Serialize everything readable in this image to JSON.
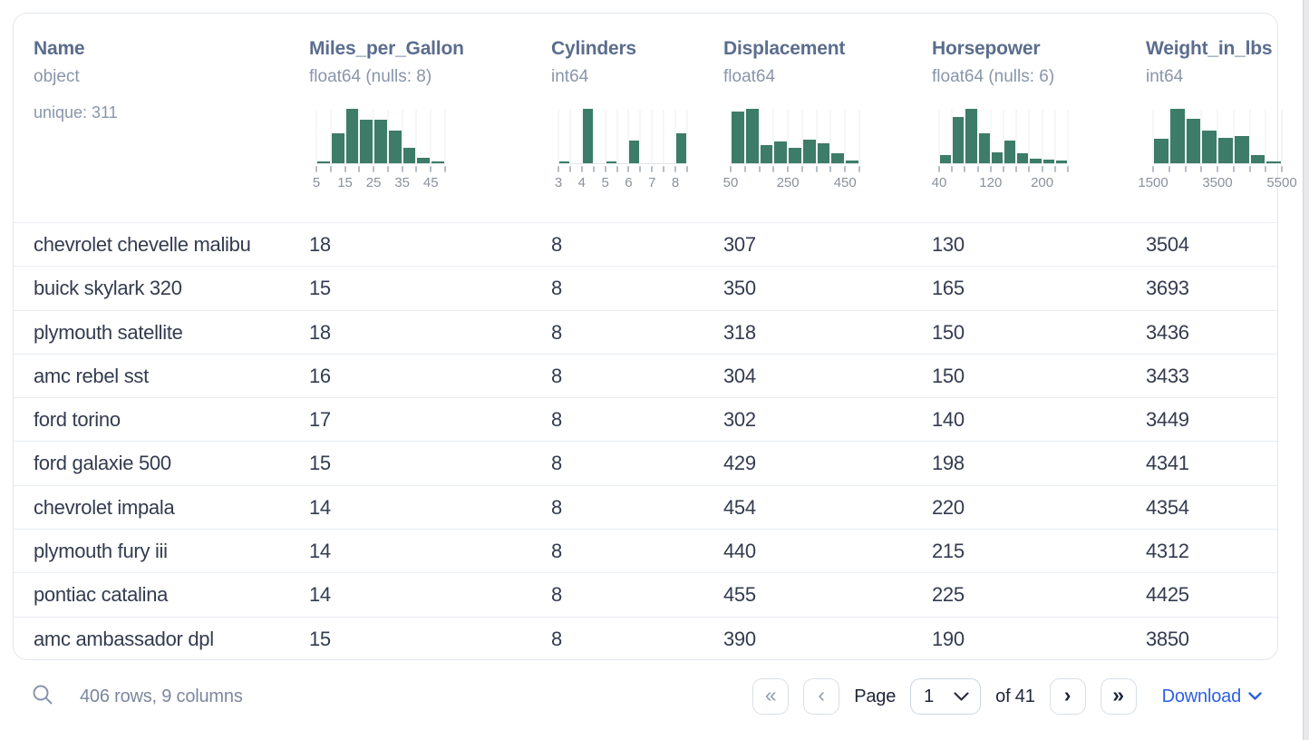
{
  "table": {
    "columns": [
      {
        "name": "Name",
        "type": "object",
        "extra": "unique: 311",
        "histogram": null
      },
      {
        "name": "Miles_per_Gallon",
        "type": "float64 (nulls: 8)",
        "extra": "",
        "histogram": {
          "bars": [
            3,
            55,
            100,
            80,
            80,
            60,
            28,
            10,
            3
          ],
          "tick_count": 10,
          "tick_labels": [
            {
              "i": 0,
              "t": "5"
            },
            {
              "i": 2,
              "t": "15"
            },
            {
              "i": 4,
              "t": "25"
            },
            {
              "i": 6,
              "t": "35"
            },
            {
              "i": 8,
              "t": "45"
            }
          ],
          "x_min": 5,
          "x_max": 50
        }
      },
      {
        "name": "Cylinders",
        "type": "int64",
        "extra": "",
        "histogram": {
          "bars": [
            4,
            0,
            100,
            0,
            3,
            0,
            42,
            0,
            0,
            0,
            55
          ],
          "tick_count": 12,
          "tick_labels": [
            {
              "i": 0,
              "t": "3"
            },
            {
              "i": 2,
              "t": "4"
            },
            {
              "i": 4,
              "t": "5"
            },
            {
              "i": 6,
              "t": "6"
            },
            {
              "i": 8,
              "t": "7"
            },
            {
              "i": 10,
              "t": "8"
            }
          ],
          "x_min": 3,
          "x_max": 8.5
        }
      },
      {
        "name": "Displacement",
        "type": "float64",
        "extra": "",
        "histogram": {
          "bars": [
            95,
            100,
            33,
            40,
            29,
            43,
            37,
            18,
            5
          ],
          "tick_count": 10,
          "tick_labels": [
            {
              "i": 0,
              "t": "50"
            },
            {
              "i": 4,
              "t": "250"
            },
            {
              "i": 8,
              "t": "450"
            }
          ],
          "x_min": 50,
          "x_max": 500
        }
      },
      {
        "name": "Horsepower",
        "type": "float64 (nulls: 6)",
        "extra": "",
        "histogram": {
          "bars": [
            15,
            85,
            100,
            55,
            20,
            42,
            18,
            9,
            6,
            5
          ],
          "tick_count": 11,
          "tick_labels": [
            {
              "i": 0,
              "t": "40"
            },
            {
              "i": 4,
              "t": "120"
            },
            {
              "i": 8,
              "t": "200"
            }
          ],
          "x_min": 40,
          "x_max": 240
        }
      },
      {
        "name": "Weight_in_lbs",
        "type": "int64",
        "extra": "",
        "histogram": {
          "bars": [
            45,
            100,
            82,
            60,
            47,
            50,
            15,
            2
          ],
          "tick_count": 9,
          "tick_labels": [
            {
              "i": 0,
              "t": "1500"
            },
            {
              "i": 4,
              "t": "3500"
            },
            {
              "i": 8,
              "t": "5500"
            }
          ],
          "x_min": 1500,
          "x_max": 5500
        }
      }
    ],
    "rows": [
      [
        "chevrolet chevelle malibu",
        "18",
        "8",
        "307",
        "130",
        "3504"
      ],
      [
        "buick skylark 320",
        "15",
        "8",
        "350",
        "165",
        "3693"
      ],
      [
        "plymouth satellite",
        "18",
        "8",
        "318",
        "150",
        "3436"
      ],
      [
        "amc rebel sst",
        "16",
        "8",
        "304",
        "150",
        "3433"
      ],
      [
        "ford torino",
        "17",
        "8",
        "302",
        "140",
        "3449"
      ],
      [
        "ford galaxie 500",
        "15",
        "8",
        "429",
        "198",
        "4341"
      ],
      [
        "chevrolet impala",
        "14",
        "8",
        "454",
        "220",
        "4354"
      ],
      [
        "plymouth fury iii",
        "14",
        "8",
        "440",
        "215",
        "4312"
      ],
      [
        "pontiac catalina",
        "14",
        "8",
        "455",
        "225",
        "4425"
      ],
      [
        "amc ambassador dpl",
        "15",
        "8",
        "390",
        "190",
        "3850"
      ]
    ]
  },
  "footer": {
    "summary": "406 rows, 9 columns",
    "pagination": {
      "first_label": "«",
      "prev_label": "‹",
      "page_label": "Page",
      "current_page": "1",
      "of_label": "of 41",
      "next_label": "›",
      "last_label": "»"
    },
    "download_label": "Download"
  },
  "colors": {
    "histogram_bar": "#3d7c68",
    "download_link": "#2d5fe3",
    "header_text": "#5b6d8e",
    "cell_text": "#333b4f"
  }
}
